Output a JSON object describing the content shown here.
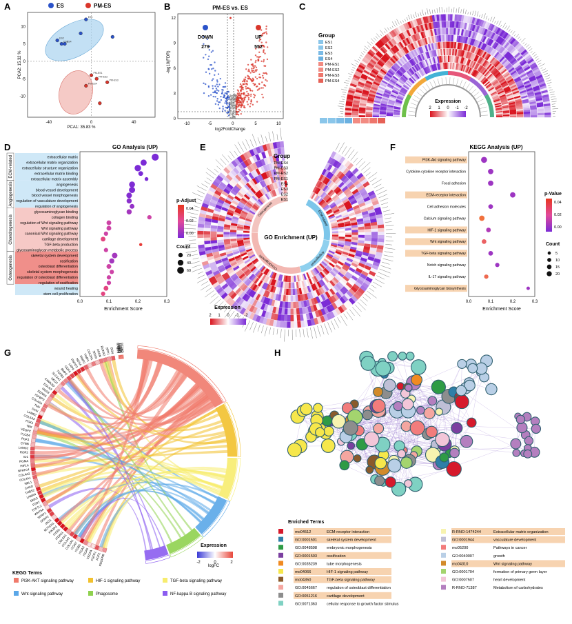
{
  "panel_letters": [
    "A",
    "B",
    "C",
    "D",
    "E",
    "F",
    "G",
    "H"
  ],
  "colors": {
    "es": "#2a52c9",
    "pm_es": "#d9362b",
    "ellipse_es": "#a9d3ef",
    "ellipse_pm": "#f2b8b3",
    "down": "#2a52c9",
    "up": "#d9362b",
    "ecm_bg": "#cfe8f7",
    "chondro_bg": "#f6c9c6",
    "osteo_bg": "#f08f8a",
    "kegg_hl": "#f7d3b0",
    "purple": "#7b2bd6",
    "orange": "#f4792b"
  },
  "chart_data": [
    {
      "panel": "A",
      "type": "scatter",
      "legend": [
        "ES",
        "PM-ES"
      ],
      "xlabel": "PCA1: 35.83 %",
      "ylabel": "PCA2: 15.32 %",
      "xlim": [
        -60,
        60
      ],
      "ylim": [
        -16,
        14
      ],
      "xticks": [
        "-40",
        "0",
        "40"
      ],
      "yticks": [
        "10",
        "5",
        "0",
        "-5",
        "-10"
      ],
      "series": [
        {
          "name": "ES",
          "points": [
            [
              -5,
              12
            ],
            [
              -32,
              6
            ],
            [
              -28,
              5
            ],
            [
              -25,
              5
            ],
            [
              -10,
              8
            ],
            [
              20,
              7
            ]
          ],
          "labels": [
            "ES1",
            "ES2",
            "ES3",
            "ES4",
            "",
            ""
          ]
        },
        {
          "name": "PM-ES",
          "points": [
            [
              0,
              -4
            ],
            [
              5,
              -5
            ],
            [
              15,
              -6
            ],
            [
              -5,
              -7
            ],
            [
              8,
              -12
            ]
          ],
          "labels": [
            "PM-ES1",
            "PM-ES2",
            "PM-ES3",
            "PM-ES4",
            ""
          ]
        }
      ]
    },
    {
      "panel": "B",
      "type": "scatter",
      "title": "PM-ES vs. ES",
      "xlabel": "log2FoldChange",
      "ylabel": "-log10(FDR)",
      "xlim": [
        -12,
        11
      ],
      "ylim": [
        0,
        12.5
      ],
      "xticks": [
        "-10",
        "-5",
        "0",
        "5",
        "10"
      ],
      "yticks": [
        "12",
        "9",
        "6",
        "3",
        "0"
      ],
      "down_label": "DOWN",
      "down_count": "279",
      "up_label": "UP",
      "up_count": "552"
    },
    {
      "panel": "C",
      "type": "heatmap",
      "group_title": "Group",
      "groups": [
        "ES1",
        "ES2",
        "ES3",
        "ES4",
        "PM-ES1",
        "PM-ES2",
        "PM-ES3",
        "PM-ES4"
      ],
      "legend_title": "Expression",
      "legend_ticks": [
        "2",
        "1",
        "0",
        "-1",
        "-2"
      ]
    },
    {
      "panel": "D",
      "type": "scatter",
      "title": "GO Analysis (UP)",
      "xlabel": "Enrichment Score",
      "xticks": [
        "0.0",
        "0.1",
        "0.2",
        "0.3"
      ],
      "xlim": [
        0,
        0.3
      ],
      "categories": [
        "ECM-related",
        "Angiogenesis",
        "Chondrogenesis",
        "Osteogenesis"
      ],
      "terms": [
        "extracellular matrix",
        "extracellular matrix organization",
        "extracellular structure organization",
        "extracellular matrix binding",
        "extracellular matrix assembly",
        "angiogenesis",
        "blood vessel development",
        "blood vessel morphogenesis",
        "regulation of vasculature development",
        "regulation of angiogenesis",
        "glycosaminoglycan binding",
        "collagen binding",
        "regulation of Wnt signaling pathway",
        "Wnt signaling pathway",
        "canonical Wnt signaling pathway",
        "cartilage development",
        "TGF-beta production",
        "glycosaminoglycan metabolic process",
        "skeletal system development",
        "ossification",
        "osteoblast differentiation",
        "skeletal system morphogenesis",
        "regulation of osteoblast differentiation",
        "regulation of ossification",
        "wound healing",
        "stem cell proliferation"
      ],
      "term_category": [
        0,
        0,
        0,
        0,
        0,
        1,
        1,
        1,
        1,
        1,
        2,
        2,
        2,
        2,
        2,
        2,
        2,
        2,
        3,
        3,
        3,
        3,
        3,
        3,
        4,
        4
      ],
      "values": [
        0.26,
        0.22,
        0.2,
        0.21,
        0.23,
        0.18,
        0.18,
        0.17,
        0.17,
        0.18,
        0.17,
        0.24,
        0.1,
        0.1,
        0.09,
        0.08,
        0.21,
        0.09,
        0.12,
        0.11,
        0.1,
        0.11,
        0.1,
        0.1,
        0.09,
        0.08
      ],
      "counts": [
        55,
        40,
        45,
        20,
        10,
        35,
        40,
        30,
        25,
        20,
        25,
        15,
        20,
        20,
        15,
        20,
        5,
        15,
        30,
        25,
        20,
        15,
        15,
        15,
        20,
        15
      ],
      "padj": [
        0.0,
        0.0,
        0.0,
        0.0,
        0.0,
        0.001,
        0.001,
        0.002,
        0.004,
        0.006,
        0.01,
        0.02,
        0.02,
        0.02,
        0.02,
        0.03,
        0.045,
        0.02,
        0.01,
        0.01,
        0.02,
        0.02,
        0.02,
        0.02,
        0.03,
        0.03
      ],
      "legend_padj_title": "p-Adjust",
      "legend_padj_ticks": [
        "0.04",
        "0.02",
        "0.00"
      ],
      "legend_count_title": "Count",
      "legend_count_values": [
        "20",
        "40",
        "60"
      ]
    },
    {
      "panel": "E",
      "type": "heatmap",
      "title": "GO Enrichment (UP)",
      "group_title": "Group",
      "groups": [
        "PM-ES4",
        "PM-ES3",
        "PM-ES2",
        "PM-ES1",
        "ES4",
        "ES3",
        "ES2",
        "ES1"
      ],
      "sector_labels": [
        "ECM-related",
        "Angiogenesis",
        "Chondrogenesis",
        "Osteogenesis"
      ],
      "legend_title": "Expression",
      "legend_ticks": [
        "2",
        "1",
        "0",
        "-1",
        "-2"
      ]
    },
    {
      "panel": "F",
      "type": "scatter",
      "title": "KEGG Analysis (UP)",
      "xlabel": "Enrichment Score",
      "xticks": [
        "0.0",
        "0.1",
        "0.2",
        "0.3"
      ],
      "xlim": [
        0,
        0.3
      ],
      "terms": [
        "PI3K-Akt signaling pathway",
        "Cytokine-cytokine receptor interaction",
        "Focal adhesion",
        "ECM-receptor interaction",
        "Cell adhesion molecules",
        "Calcium signaling pathway",
        "HIF-1 signaling pathway",
        "Wnt signaling pathway",
        "TGF-beta signaling pathway",
        "Notch signaling pathway",
        "IL-17 signaling pathway",
        "Glycosaminoglycan biosynthesis"
      ],
      "highlighted": [
        true,
        false,
        false,
        true,
        false,
        false,
        true,
        true,
        true,
        false,
        false,
        true
      ],
      "values": [
        0.07,
        0.1,
        0.1,
        0.2,
        0.1,
        0.06,
        0.09,
        0.07,
        0.1,
        0.13,
        0.08,
        0.27
      ],
      "counts": [
        20,
        15,
        15,
        15,
        10,
        15,
        10,
        10,
        10,
        8,
        8,
        4
      ],
      "pvalue": [
        0.01,
        0.01,
        0.01,
        0.01,
        0.01,
        0.055,
        0.015,
        0.045,
        0.01,
        0.01,
        0.05,
        0.01
      ],
      "legend_p_title": "p-Value",
      "legend_p_ticks": [
        "0.04",
        "0.02",
        "0.00"
      ],
      "legend_count_title": "Count",
      "legend_count_values": [
        "5",
        "10",
        "15",
        "20"
      ]
    },
    {
      "panel": "G",
      "type": "chord",
      "genes": [
        "PDGFRB",
        "FGF2",
        "FGFR1",
        "VEGFA",
        "ITGA5",
        "ITGA2",
        "ITGB5",
        "ITGAV",
        "COL1A1",
        "COL3A1",
        "COL5A1",
        "ITGA11",
        "ITGB1",
        "PIK3R1",
        "NOTCH1",
        "JAG1",
        "SFRP2",
        "SFRP1",
        "WNT5A",
        "TCF7L2",
        "FZD2",
        "DKK3",
        "LAMA4",
        "THBS2",
        "CHAD",
        "NBL1",
        "COL4A1",
        "COL4A2",
        "NFATC4",
        "HIF1A",
        "RGMA",
        "ID1",
        "ROR2",
        "LAMC2",
        "CYBB",
        "PGK1",
        "PLCB4",
        "VEGFC",
        "TEK",
        "PGK1",
        "COL6A3",
        "LAMB2",
        "DCN",
        "TNN",
        "COL4A4",
        "IGFBP3",
        "EDNRA",
        "NOS3",
        "EGLN3",
        "CAMK2D",
        "NKD2",
        "SLC2A1",
        "TGFB2",
        "BMP2",
        "GDF6",
        "LRP6",
        "RSPO3",
        "NOX4",
        "MMP2",
        "TIMP1",
        "COL2A1",
        "SOX9",
        "ACAN",
        "RUNX2",
        "SPP1",
        "BGN"
      ],
      "genes_right": [
        "IL1B",
        "PRKCB",
        "LAMB1",
        "THBS1",
        "NFKB1",
        "TNF",
        "CXCL8"
      ],
      "legend_title": "Expression",
      "legend_axis": "logFC",
      "legend_ticks": [
        "-2",
        "0",
        "2"
      ],
      "kegg_title": "KEGG Terms",
      "terms": [
        {
          "name": "PI3K-AKT signaling pathway",
          "color": "#f07a6b",
          "frac": 0.34
        },
        {
          "name": "HIF-1 signaling pathway",
          "color": "#f2c12e",
          "frac": 0.18
        },
        {
          "name": "TGF-beta signaling pathway",
          "color": "#f7ec6e",
          "frac": 0.14
        },
        {
          "name": "Wnt signaling pathway",
          "color": "#5aa7e8",
          "frac": 0.14
        },
        {
          "name": "Phagosome",
          "color": "#8fd14f",
          "frac": 0.12
        },
        {
          "name": "NF-kappa B signaling pathway",
          "color": "#8b5cf0",
          "frac": 0.08
        }
      ]
    },
    {
      "panel": "H",
      "type": "network",
      "legend_title": "Enriched Terms",
      "terms_left": [
        {
          "id": "mo04512",
          "name": "ECM-receptor interaction",
          "color": "#d6192b",
          "hl": true
        },
        {
          "id": "GO:0001501",
          "name": "skeletal system development",
          "color": "#2f7fa8",
          "hl": true
        },
        {
          "id": "GO:0048598",
          "name": "embryonic morphogenesis",
          "color": "#2e9b45",
          "hl": false
        },
        {
          "id": "GO:0001503",
          "name": "ossification",
          "color": "#7b3fa0",
          "hl": true
        },
        {
          "id": "GO:0035239",
          "name": "tube morphogenesis",
          "color": "#f08a21",
          "hl": false
        },
        {
          "id": "mo04066",
          "name": "HIF-1 signaling pathway",
          "color": "#f6e74b",
          "hl": true
        },
        {
          "id": "mo04350",
          "name": "TGF-beta signaling pathway",
          "color": "#8a5a2b",
          "hl": true
        },
        {
          "id": "GO:0045667",
          "name": "regulation of osteoblast differentiation",
          "color": "#f5a6a0",
          "hl": false
        },
        {
          "id": "GO:0051216",
          "name": "cartilage development",
          "color": "#8d8d8d",
          "hl": true
        },
        {
          "id": "GO:0071363",
          "name": "cellular response to growth factor stimulus",
          "color": "#7fd1c3",
          "hl": false
        }
      ],
      "terms_right": [
        {
          "id": "R-RNO-1474244",
          "name": "Extracellular matrix organization",
          "color": "#f7f3b0",
          "hl": true
        },
        {
          "id": "GO:0001944",
          "name": "vasculature development",
          "color": "#bfbfd6",
          "hl": true
        },
        {
          "id": "mo05200",
          "name": "Pathways in cancer",
          "color": "#f27c7c",
          "hl": false
        },
        {
          "id": "GO:0040007",
          "name": "growth",
          "color": "#b9cfe6",
          "hl": false
        },
        {
          "id": "mo04310",
          "name": "Wnt signaling pathway",
          "color": "#d28a2a",
          "hl": true
        },
        {
          "id": "GO:0001704",
          "name": "formation of primary germ layer",
          "color": "#a4d46e",
          "hl": false
        },
        {
          "id": "GO:0007507",
          "name": "heart development",
          "color": "#f3c6d8",
          "hl": false
        },
        {
          "id": "R-RNO-71387",
          "name": "Metabolism of carbohydrates",
          "color": "#b47fbf",
          "hl": false
        }
      ]
    }
  ]
}
